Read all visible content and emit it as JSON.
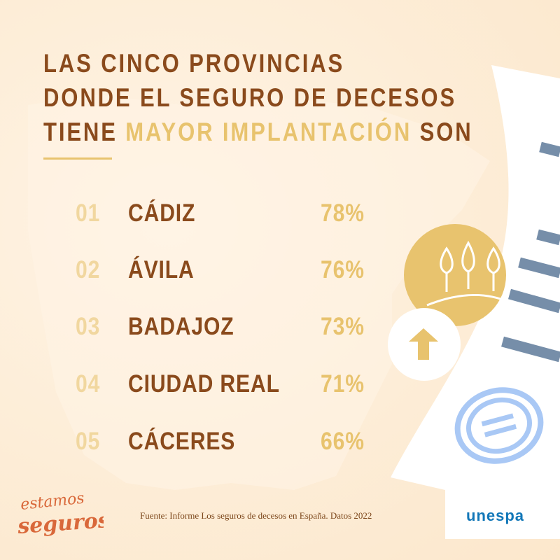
{
  "title": {
    "line1": "LAS CINCO PROVINCIAS",
    "line2": "DONDE EL SEGURO DE DECESOS",
    "line3_start": "TIENE ",
    "line3_highlight": "MAYOR IMPLANTACIÓN",
    "line3_end": " SON"
  },
  "ranking": [
    {
      "rank": "01",
      "province": "CÁDIZ",
      "percent": "78%"
    },
    {
      "rank": "02",
      "province": "ÁVILA",
      "percent": "76%"
    },
    {
      "rank": "03",
      "province": "BADAJOZ",
      "percent": "73%"
    },
    {
      "rank": "04",
      "province": "CIUDAD REAL",
      "percent": "71%"
    },
    {
      "rank": "05",
      "province": "CÁCERES",
      "percent": "66%"
    }
  ],
  "source": "Fuente: Informe Los seguros de decesos en España. Datos 2022",
  "logos": {
    "left": "estamos seguros",
    "right": "unespa"
  },
  "colors": {
    "background": "#fdebd4",
    "brown": "#8a4a1c",
    "gold": "#e8c36e",
    "slate_blue": "#768ea9",
    "light_blue": "#a9c8f5",
    "unespa_blue": "#1277b8",
    "logo_orange": "#d9683a"
  },
  "icons": [
    "cypress-trees-icon",
    "arrow-up-icon",
    "coin-icon",
    "document-icon"
  ]
}
